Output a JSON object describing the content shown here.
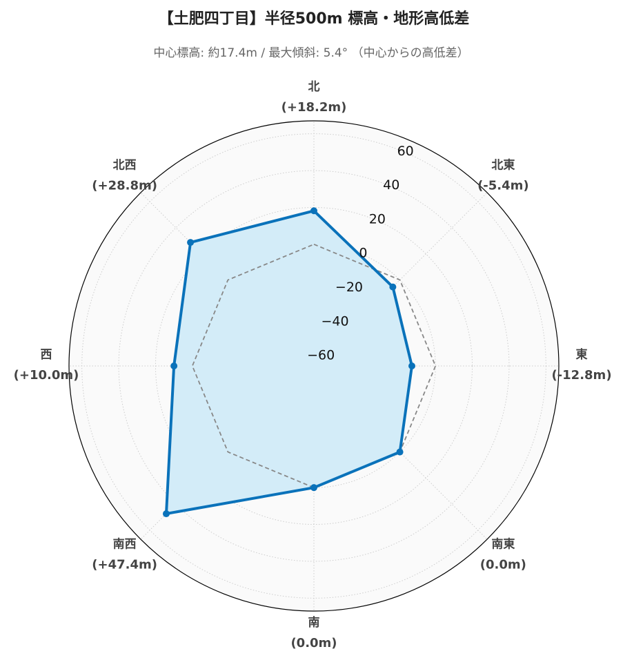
{
  "chart_data": {
    "type": "radar",
    "title": "【土肥四丁目】半径500m 標高・地形高低差",
    "subtitle": "中心標高: 約17.4m / 最大傾斜: 5.4° （中心からの高低差）",
    "categories": [
      "北",
      "北東",
      "東",
      "南東",
      "南",
      "南西",
      "西",
      "北西"
    ],
    "series": [
      {
        "color": "#0a72ba",
        "fill": "#d3ecf8",
        "values": [
          18.2,
          -5.4,
          -12.8,
          0.0,
          0.0,
          47.4,
          10.0,
          28.8
        ],
        "value_labels": [
          "(+18.2m)",
          "(-5.4m)",
          "(-12.8m)",
          "(0.0m)",
          "(0.0m)",
          "(+47.4m)",
          "(+10.0m)",
          "(+28.8m)"
        ]
      },
      {
        "color": "#888888",
        "dashed": true,
        "values": [
          0,
          0,
          0,
          0,
          0,
          0,
          0,
          0
        ]
      }
    ],
    "rlim": [
      -66,
      67
    ],
    "rticks": [
      {
        "value": -60,
        "label": "−60"
      },
      {
        "value": -40,
        "label": "−40"
      },
      {
        "value": -20,
        "label": "−20"
      },
      0,
      20,
      40,
      60
    ],
    "grid": true
  }
}
